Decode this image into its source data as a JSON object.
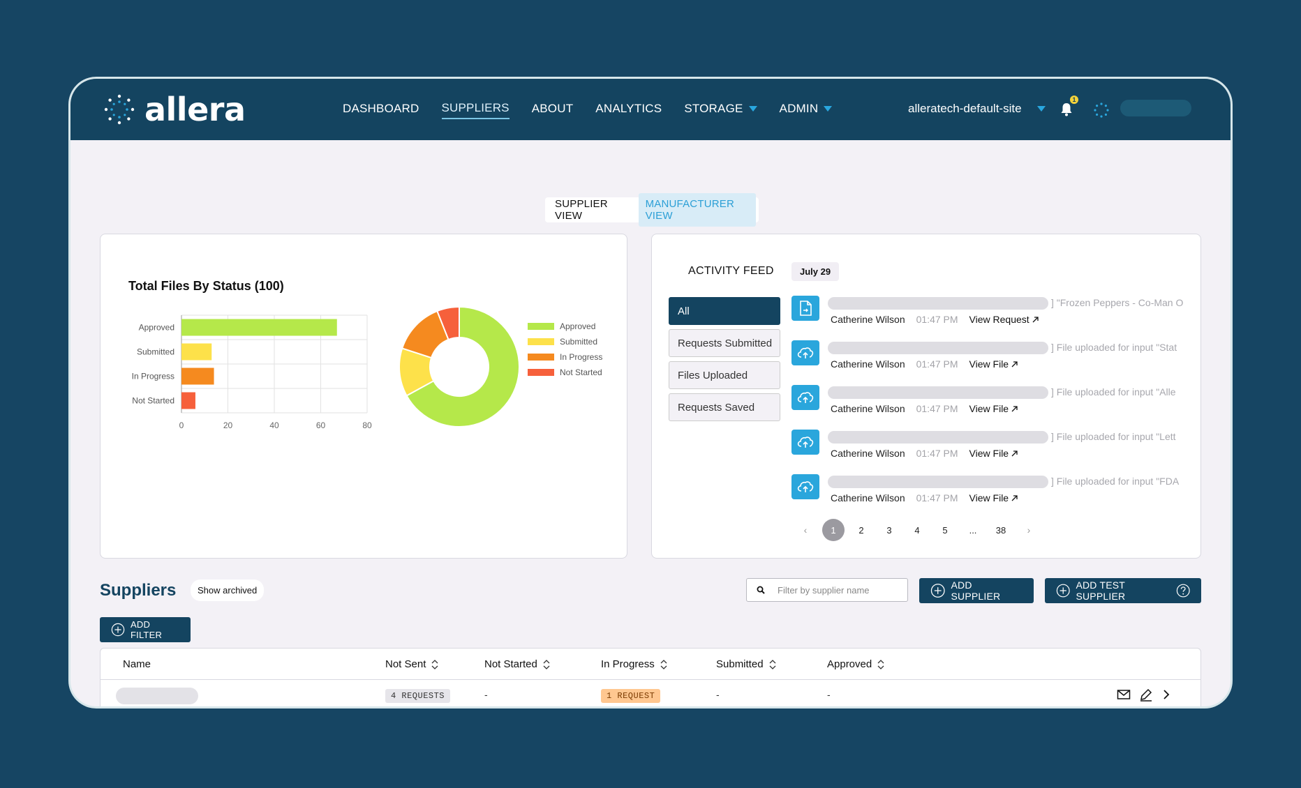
{
  "nav": {
    "logo_text": "allera",
    "menu": [
      {
        "label": "DASHBOARD",
        "active": false,
        "dropdown": false
      },
      {
        "label": "SUPPLIERS",
        "active": true,
        "dropdown": false
      },
      {
        "label": "ABOUT",
        "active": false,
        "dropdown": false
      },
      {
        "label": "ANALYTICS",
        "active": false,
        "dropdown": false
      },
      {
        "label": "STORAGE",
        "active": false,
        "dropdown": true
      },
      {
        "label": "ADMIN",
        "active": false,
        "dropdown": true
      }
    ],
    "site": "alleratech-default-site",
    "notification_count": "1"
  },
  "view_toggle": {
    "supplier": "SUPPLIER VIEW",
    "manufacturer": "MANUFACTURER VIEW",
    "selected": "manufacturer"
  },
  "chart": {
    "title": "Total Files By Status (100)"
  },
  "chart_data": [
    {
      "type": "bar",
      "orientation": "horizontal",
      "categories": [
        "Approved",
        "Submitted",
        "In Progress",
        "Not Started"
      ],
      "values": [
        67,
        13,
        14,
        6
      ],
      "colors": [
        "#b5e84a",
        "#fde14a",
        "#f58a1f",
        "#f6603b"
      ],
      "xlim": [
        0,
        80
      ],
      "xticks": [
        0,
        20,
        40,
        60,
        80
      ],
      "grid": true
    },
    {
      "type": "pie",
      "donut": true,
      "labels": [
        "Approved",
        "Submitted",
        "In Progress",
        "Not Started"
      ],
      "values": [
        67,
        13,
        14,
        6
      ],
      "colors": [
        "#b5e84a",
        "#fde14a",
        "#f58a1f",
        "#f6603b"
      ],
      "legend_position": "right"
    }
  ],
  "activity": {
    "title": "ACTIVITY FEED",
    "date": "July 29",
    "filters": [
      {
        "label": "All",
        "active": true
      },
      {
        "label": "Requests Submitted",
        "active": false
      },
      {
        "label": "Files Uploaded",
        "active": false
      },
      {
        "label": "Requests Saved",
        "active": false
      }
    ],
    "items": [
      {
        "icon": "document-icon",
        "desc": "] \"Frozen Peppers - Co-Man O",
        "user": "Catherine Wilson",
        "time": "01:47 PM",
        "link": "View Request"
      },
      {
        "icon": "cloud-upload-icon",
        "desc": "] File uploaded for input \"Stat",
        "user": "Catherine Wilson",
        "time": "01:47 PM",
        "link": "View File"
      },
      {
        "icon": "cloud-upload-icon",
        "desc": "] File uploaded for input \"Alle",
        "user": "Catherine Wilson",
        "time": "01:47 PM",
        "link": "View File"
      },
      {
        "icon": "cloud-upload-icon",
        "desc": "] File uploaded for input \"Lett",
        "user": "Catherine Wilson",
        "time": "01:47 PM",
        "link": "View File"
      },
      {
        "icon": "cloud-upload-icon",
        "desc": "] File uploaded for input \"FDA",
        "user": "Catherine Wilson",
        "time": "01:47 PM",
        "link": "View File"
      }
    ],
    "pagination": {
      "prev": "‹",
      "pages": [
        "1",
        "2",
        "3",
        "4",
        "5"
      ],
      "ellipsis": "...",
      "last": "38",
      "next": "›",
      "current": "1"
    }
  },
  "suppliers": {
    "title": "Suppliers",
    "show_archived": "Show archived",
    "search_placeholder": "Filter by supplier name",
    "add_supplier": "ADD SUPPLIER",
    "add_test_supplier": "ADD TEST SUPPLIER",
    "add_filter": "ADD FILTER",
    "columns": [
      "Name",
      "Not Sent",
      "Not Started",
      "In Progress",
      "Submitted",
      "Approved"
    ],
    "rows": [
      {
        "not_sent": "4 REQUESTS",
        "not_started": "-",
        "in_progress": "1 REQUEST",
        "submitted": "-",
        "approved": "-"
      }
    ]
  }
}
